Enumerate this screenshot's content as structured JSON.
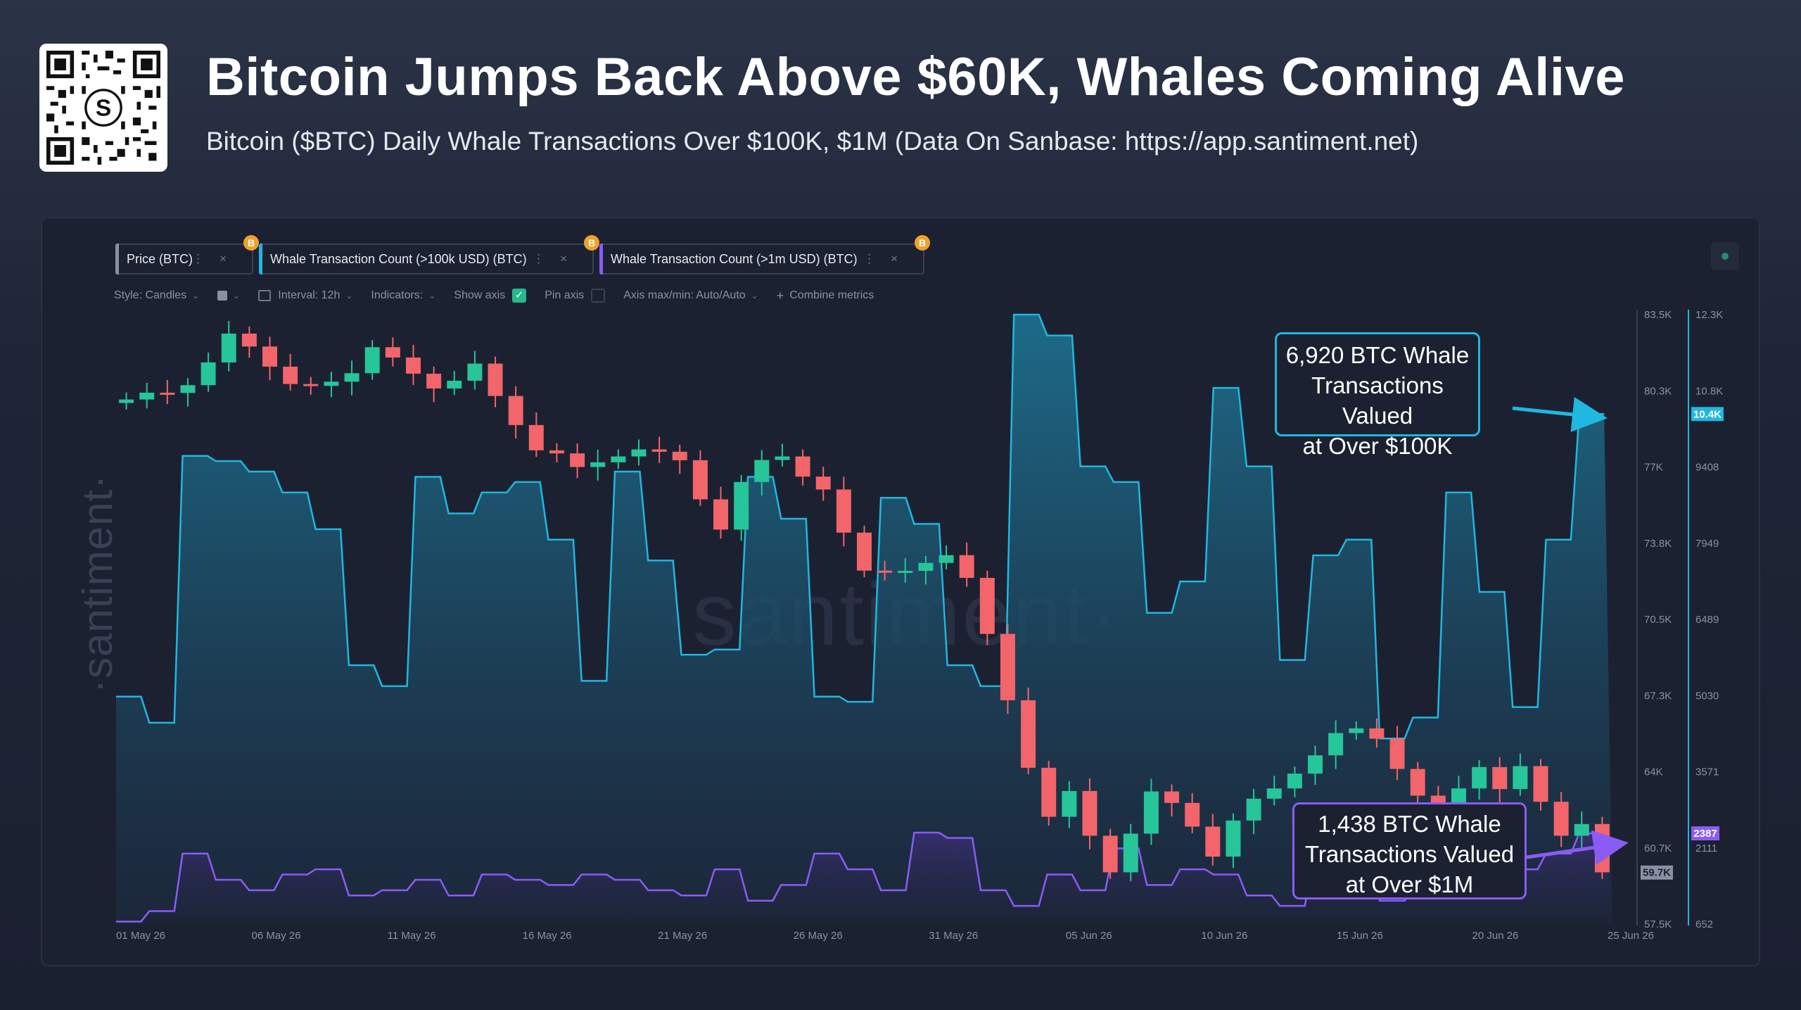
{
  "header": {
    "title": "Bitcoin Jumps Back Above $60K, Whales Coming Alive",
    "subtitle": "Bitcoin ($BTC) Daily Whale Transactions Over $100K, $1M (Data On Sanbase: https://app.santiment.net)",
    "qr_icon": "santiment-qr-code",
    "qr_logo_text": "S"
  },
  "tabs": [
    {
      "label": "Price (BTC)",
      "color": "#8a90a3",
      "badge": "B"
    },
    {
      "label": "Whale Transaction Count (>100k USD) (BTC)",
      "color": "#20b7e0",
      "badge": "B"
    },
    {
      "label": "Whale Transaction Count (>1m USD) (BTC)",
      "color": "#8a5cf5",
      "badge": "B"
    }
  ],
  "toolbar": {
    "style_label": "Style: Candles",
    "interval_label": "Interval: 12h",
    "indicators_label": "Indicators:",
    "show_axis_label": "Show axis",
    "pin_axis_label": "Pin axis",
    "axis_label": "Axis max/min: Auto/Auto",
    "combine_label": "Combine metrics"
  },
  "watermark": {
    "left": "·santiment·",
    "center": "·santiment·"
  },
  "annotations": {
    "whale_100k": [
      "6,920 BTC Whale",
      "Transactions Valued",
      "at Over $100K"
    ],
    "whale_1m": [
      "1,438 BTC Whale",
      "Transactions Valued",
      "at Over $1M"
    ]
  },
  "colors": {
    "up": "#26c59a",
    "down": "#f2656a",
    "whale_100k": "#20b7e0",
    "whale_1m": "#8a5cf5"
  },
  "chart_data": {
    "type": "line",
    "title": "",
    "xlabel": "",
    "ylabel": "",
    "x_ticks": [
      "01 May 26",
      "06 May 26",
      "11 May 26",
      "16 May 26",
      "21 May 26",
      "26 May 26",
      "31 May 26",
      "05 Jun 26",
      "10 Jun 26",
      "15 Jun 26",
      "20 Jun 26",
      "25 Jun 26"
    ],
    "price_axis": {
      "ticks": [
        "83.5K",
        "80.3K",
        "77K",
        "73.8K",
        "70.5K",
        "67.3K",
        "64K",
        "60.7K",
        "57.5K"
      ],
      "ylim": [
        57500,
        83500
      ],
      "current_label": "59.7K",
      "current_value": 59700
    },
    "whale_axis": {
      "ticks": [
        "12.3K",
        "10.8K",
        "9408",
        "7949",
        "6489",
        "5030",
        "3571",
        "2111",
        "652"
      ],
      "ylim": [
        652,
        12300
      ],
      "current_label_100k": "10.4K",
      "current_label_1m": "2387"
    },
    "price_candles_close": [
      79880,
      80170,
      80160,
      80490,
      81460,
      82690,
      82140,
      81280,
      80540,
      80460,
      80640,
      81000,
      82110,
      81670,
      80980,
      80350,
      80680,
      81410,
      80030,
      78790,
      77710,
      77580,
      77000,
      77200,
      77450,
      77750,
      77650,
      77290,
      75620,
      74330,
      76360,
      77300,
      77450,
      76590,
      76040,
      74200,
      72580,
      72540,
      72570,
      72910,
      73240,
      72270,
      69880,
      67050,
      64170,
      62080,
      63180,
      61270,
      59710,
      61360,
      63160,
      62670,
      61660,
      60380,
      61920,
      62850,
      63290,
      63920,
      64700,
      65650,
      65850,
      65410,
      64120,
      62980,
      62280,
      63290,
      64200,
      63260,
      64240,
      62720,
      61270,
      61770,
      59710
    ],
    "series": [
      {
        "name": "Whale Transaction Count (>100k USD) (BTC)",
        "values": [
          5000,
          4500,
          9600,
          9500,
          9300,
          8900,
          8200,
          5600,
          5200,
          9200,
          8500,
          8900,
          9100,
          8000,
          5300,
          9300,
          7600,
          5800,
          5900,
          9200,
          8400,
          5000,
          4900,
          8800,
          8300,
          5600,
          5200,
          12300,
          11900,
          9400,
          9100,
          6600,
          7200,
          10900,
          9400,
          5700,
          7700,
          8000,
          4200,
          4600,
          8900,
          7000,
          4800,
          8000,
          10400
        ]
      },
      {
        "name": "Whale Transaction Count (>1m USD) (BTC)",
        "values": [
          700,
          900,
          2000,
          1500,
          1300,
          1600,
          1700,
          1200,
          1300,
          1500,
          1200,
          1600,
          1500,
          1400,
          1600,
          1500,
          1300,
          1200,
          1700,
          1100,
          1400,
          2000,
          1700,
          1300,
          2400,
          2300,
          1300,
          1000,
          1600,
          1300,
          2100,
          1400,
          1700,
          1600,
          1200,
          1000,
          1900,
          1500,
          1100,
          1300,
          1400,
          1500,
          1700,
          2000,
          2387
        ]
      }
    ]
  }
}
